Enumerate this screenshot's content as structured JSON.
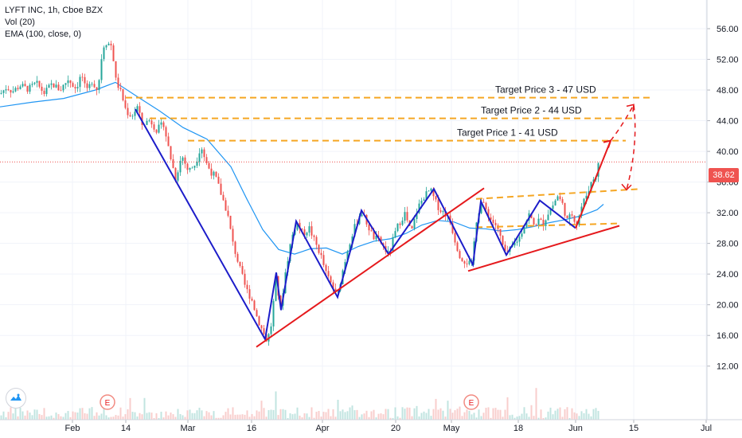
{
  "chart_data": {
    "type": "candlestick",
    "symbol_line": "LYFT INC, 1h, Cboe BZX",
    "indicators": [
      "Vol (20)",
      "EMA (100, close, 0)"
    ],
    "last_price": "38.62",
    "y_ticks": [
      "56.00",
      "52.00",
      "48.00",
      "44.00",
      "40.00",
      "36.00",
      "32.00",
      "28.00",
      "24.00",
      "20.00",
      "16.00",
      "12.00"
    ],
    "x_ticks": [
      "Feb",
      "14",
      "Mar",
      "16",
      "Apr",
      "20",
      "May",
      "18",
      "Jun",
      "15",
      "Jul"
    ],
    "ylim": [
      11,
      59
    ],
    "price_path": [
      [
        0,
        47.5
      ],
      [
        8,
        48.4
      ],
      [
        15,
        47.8
      ],
      [
        25,
        48.6
      ],
      [
        35,
        48.1
      ],
      [
        45,
        48.9
      ],
      [
        55,
        47.6
      ],
      [
        65,
        48.8
      ],
      [
        75,
        48.0
      ],
      [
        85,
        49.4
      ],
      [
        95,
        48.2
      ],
      [
        102,
        50.1
      ],
      [
        108,
        47.6
      ],
      [
        115,
        49.2
      ],
      [
        122,
        48.0
      ],
      [
        126,
        50.8
      ],
      [
        128,
        53.6
      ],
      [
        133,
        54.2
      ],
      [
        140,
        53.8
      ],
      [
        145,
        49.3
      ],
      [
        152,
        47.5
      ],
      [
        158,
        45.2
      ],
      [
        165,
        44.6
      ],
      [
        172,
        45.8
      ],
      [
        178,
        43.5
      ],
      [
        188,
        44.1
      ],
      [
        196,
        42.8
      ],
      [
        205,
        43.6
      ],
      [
        212,
        40.0
      ],
      [
        220,
        36.5
      ],
      [
        228,
        39.5
      ],
      [
        236,
        37.4
      ],
      [
        245,
        38.4
      ],
      [
        252,
        40.8
      ],
      [
        258,
        38.6
      ],
      [
        264,
        37.4
      ],
      [
        270,
        36.7
      ],
      [
        278,
        34.2
      ],
      [
        285,
        32.0
      ],
      [
        292,
        28.0
      ],
      [
        300,
        25.0
      ],
      [
        308,
        22.2
      ],
      [
        316,
        20.6
      ],
      [
        322,
        18.5
      ],
      [
        330,
        16.4
      ],
      [
        335,
        15.2
      ],
      [
        340,
        17.3
      ],
      [
        346,
        23.3
      ],
      [
        352,
        19.5
      ],
      [
        358,
        24.2
      ],
      [
        365,
        28.4
      ],
      [
        372,
        30.8
      ],
      [
        380,
        29.2
      ],
      [
        388,
        30.0
      ],
      [
        395,
        28.2
      ],
      [
        402,
        26.6
      ],
      [
        409,
        24.1
      ],
      [
        416,
        22.6
      ],
      [
        423,
        21.1
      ],
      [
        430,
        24.5
      ],
      [
        438,
        28.0
      ],
      [
        446,
        30.4
      ],
      [
        453,
        32.2
      ],
      [
        460,
        30.7
      ],
      [
        468,
        28.8
      ],
      [
        476,
        28.4
      ],
      [
        482,
        27.4
      ],
      [
        488,
        26.5
      ],
      [
        494,
        28.8
      ],
      [
        500,
        30.5
      ],
      [
        508,
        31.9
      ],
      [
        516,
        29.3
      ],
      [
        524,
        32.6
      ],
      [
        532,
        34.1
      ],
      [
        540,
        35.0
      ],
      [
        546,
        33.5
      ],
      [
        552,
        32.4
      ],
      [
        560,
        31.8
      ],
      [
        566,
        30.5
      ],
      [
        572,
        28.0
      ],
      [
        578,
        26.2
      ],
      [
        585,
        25.6
      ],
      [
        592,
        25.3
      ],
      [
        598,
        31.1
      ],
      [
        604,
        33.4
      ],
      [
        610,
        32.4
      ],
      [
        616,
        31.1
      ],
      [
        622,
        30.4
      ],
      [
        628,
        28.8
      ],
      [
        634,
        26.6
      ],
      [
        640,
        27.1
      ],
      [
        646,
        28.0
      ],
      [
        652,
        28.8
      ],
      [
        658,
        30.4
      ],
      [
        664,
        31.8
      ],
      [
        670,
        30.4
      ],
      [
        676,
        31.0
      ],
      [
        682,
        30.6
      ],
      [
        688,
        32.0
      ],
      [
        694,
        33.0
      ],
      [
        700,
        34.2
      ],
      [
        706,
        33.1
      ],
      [
        712,
        31.0
      ],
      [
        718,
        31.8
      ],
      [
        724,
        30.6
      ],
      [
        730,
        32.8
      ],
      [
        736,
        34.3
      ],
      [
        742,
        35.9
      ],
      [
        748,
        37.0
      ],
      [
        752,
        38.6
      ]
    ],
    "ema_path": [
      [
        0,
        45.8
      ],
      [
        40,
        46.4
      ],
      [
        80,
        46.9
      ],
      [
        120,
        48.0
      ],
      [
        145,
        49.0
      ],
      [
        170,
        47.3
      ],
      [
        200,
        45.3
      ],
      [
        230,
        43.1
      ],
      [
        260,
        41.6
      ],
      [
        290,
        38.0
      ],
      [
        310,
        33.8
      ],
      [
        330,
        29.8
      ],
      [
        350,
        27.2
      ],
      [
        370,
        26.6
      ],
      [
        390,
        27.3
      ],
      [
        410,
        27.4
      ],
      [
        430,
        26.6
      ],
      [
        450,
        27.6
      ],
      [
        470,
        28.3
      ],
      [
        490,
        28.6
      ],
      [
        510,
        29.3
      ],
      [
        530,
        30.4
      ],
      [
        550,
        31.0
      ],
      [
        570,
        30.8
      ],
      [
        590,
        30.0
      ],
      [
        610,
        29.9
      ],
      [
        630,
        29.6
      ],
      [
        650,
        29.8
      ],
      [
        670,
        30.2
      ],
      [
        690,
        30.7
      ],
      [
        710,
        31.1
      ],
      [
        730,
        31.6
      ],
      [
        750,
        32.4
      ],
      [
        758,
        33.1
      ]
    ],
    "zigzag": [
      [
        170,
        45.5
      ],
      [
        333,
        15.5
      ],
      [
        347,
        24.2
      ],
      [
        353,
        19.3
      ],
      [
        372,
        30.9
      ],
      [
        424,
        21.0
      ],
      [
        454,
        32.3
      ],
      [
        488,
        26.6
      ],
      [
        545,
        35.1
      ],
      [
        594,
        25.2
      ],
      [
        604,
        33.5
      ],
      [
        636,
        26.5
      ],
      [
        678,
        33.6
      ],
      [
        723,
        30.0
      ]
    ],
    "support_lines": [
      {
        "from": [
          322,
          14.5
        ],
        "to": [
          608,
          35.2
        ]
      },
      {
        "from": [
          588,
          24.4
        ],
        "to": [
          778,
          30.3
        ]
      },
      {
        "from": [
          723,
          30.0
        ],
        "to": [
          767,
          41.4
        ]
      }
    ],
    "channel_lines": [
      {
        "from": [
          598,
          33.8
        ],
        "to": [
          804,
          35.1
        ]
      },
      {
        "from": [
          598,
          30.1
        ],
        "to": [
          778,
          30.6
        ]
      }
    ],
    "target_lines": [
      {
        "label": "Target Price 1 - 41 USD",
        "level": 41.4,
        "from": 236,
        "to": 786
      },
      {
        "label": "Target Price 2 - 44 USD",
        "level": 44.3,
        "from": 188,
        "to": 796
      },
      {
        "label": "Target Price 3 - 47 USD",
        "level": 47.0,
        "from": 158,
        "to": 816
      }
    ],
    "projection": [
      [
        767,
        41.4
      ],
      [
        796,
        46.1
      ],
      [
        787,
        35.0
      ]
    ],
    "earnings_markers": [
      "E",
      "E"
    ]
  }
}
